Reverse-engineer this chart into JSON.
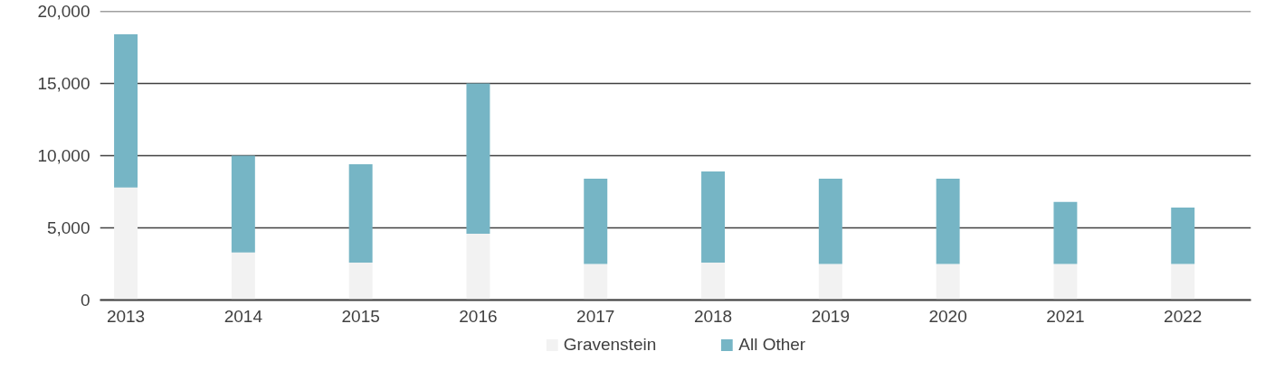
{
  "chart_data": {
    "type": "bar",
    "stacked": true,
    "categories": [
      "2013",
      "2014",
      "2015",
      "2016",
      "2017",
      "2018",
      "2019",
      "2020",
      "2021",
      "2022"
    ],
    "series": [
      {
        "name": "Gravenstein",
        "color": "#f2f2f2",
        "values": [
          7800,
          3300,
          2600,
          4600,
          2500,
          2600,
          2500,
          2500,
          2500,
          2500
        ]
      },
      {
        "name": "All Other",
        "color": "#76b5c5",
        "values": [
          10600,
          6700,
          6800,
          10400,
          5900,
          6300,
          5900,
          5900,
          4300,
          3900
        ]
      }
    ],
    "ylim": [
      0,
      20000
    ],
    "yticks": [
      {
        "value": 0,
        "label": "0"
      },
      {
        "value": 5000,
        "label": "5,000"
      },
      {
        "value": 10000,
        "label": "10,000"
      },
      {
        "value": 15000,
        "label": "15,000"
      },
      {
        "value": 20000,
        "label": "20,000"
      }
    ],
    "grid": "y",
    "legend": "bottom"
  }
}
